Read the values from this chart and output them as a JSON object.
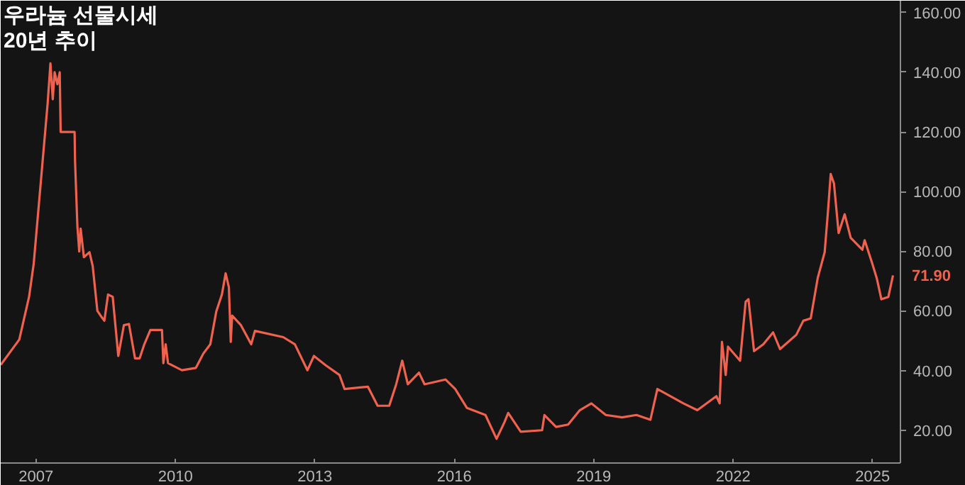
{
  "chart_data": {
    "type": "line",
    "title": "우라늄 선물시세\n20년 추이",
    "x": [
      2006.24,
      2006.64,
      2006.85,
      2006.95,
      2007.1,
      2007.25,
      2007.31,
      2007.36,
      2007.4,
      2007.46,
      2007.51,
      2007.53,
      2007.83,
      2007.84,
      2007.89,
      2007.93,
      2007.96,
      2008.03,
      2008.15,
      2008.22,
      2008.32,
      2008.39,
      2008.47,
      2008.55,
      2008.65,
      2008.77,
      2008.89,
      2009.0,
      2009.13,
      2009.23,
      2009.33,
      2009.46,
      2009.71,
      2009.74,
      2009.79,
      2009.84,
      2010.14,
      2010.44,
      2010.6,
      2010.75,
      2010.88,
      2011.0,
      2011.08,
      2011.15,
      2011.19,
      2011.22,
      2011.41,
      2011.63,
      2011.71,
      2012.32,
      2012.57,
      2012.84,
      2012.98,
      2013.23,
      2013.53,
      2013.64,
      2014.14,
      2014.35,
      2014.6,
      2014.75,
      2014.88,
      2015.0,
      2015.24,
      2015.36,
      2015.81,
      2016.02,
      2016.27,
      2016.67,
      2016.91,
      2017.08,
      2017.16,
      2017.43,
      2017.89,
      2017.94,
      2018.19,
      2018.45,
      2018.7,
      2018.95,
      2019.26,
      2019.61,
      2019.92,
      2020.22,
      2020.37,
      2020.93,
      2021.23,
      2021.64,
      2021.71,
      2021.76,
      2021.84,
      2021.89,
      2022.15,
      2022.27,
      2022.33,
      2022.45,
      2022.65,
      2022.86,
      2023.01,
      2023.36,
      2023.51,
      2023.67,
      2023.82,
      2023.97,
      2024.04,
      2024.1,
      2024.17,
      2024.27,
      2024.4,
      2024.53,
      2024.78,
      2024.83,
      2024.98,
      2025.09,
      2025.19,
      2025.34,
      2025.44
    ],
    "series": [
      {
        "color": "#f0624e",
        "values": [
          41.9,
          50.4,
          64.7,
          75.8,
          102.7,
          129.6,
          143.0,
          131.0,
          140.0,
          136.0,
          140.0,
          120.0,
          120.0,
          110.0,
          88.4,
          79.9,
          87.6,
          78.0,
          79.7,
          75.0,
          60.0,
          58.4,
          56.7,
          65.5,
          64.7,
          44.9,
          55.2,
          55.6,
          44.1,
          44.1,
          48.8,
          53.6,
          53.6,
          42.5,
          48.8,
          42.5,
          40.1,
          40.9,
          45.7,
          48.8,
          59.9,
          65.5,
          72.6,
          67.9,
          49.6,
          58.4,
          55.2,
          48.8,
          53.3,
          51.2,
          48.8,
          40.1,
          44.9,
          41.8,
          38.5,
          33.8,
          34.6,
          28.2,
          28.2,
          35.4,
          43.3,
          35.4,
          39.3,
          35.4,
          37.0,
          33.8,
          27.5,
          25.1,
          17.1,
          22.7,
          25.8,
          19.5,
          20.0,
          25.1,
          21.1,
          21.9,
          26.7,
          29.0,
          25.1,
          24.3,
          25.1,
          23.5,
          33.8,
          29.0,
          26.7,
          31.4,
          29.0,
          49.6,
          38.5,
          48.0,
          43.3,
          63.1,
          63.9,
          46.5,
          48.8,
          52.8,
          47.2,
          52.0,
          56.7,
          57.5,
          71.0,
          79.7,
          93.2,
          105.9,
          102.7,
          86.1,
          92.4,
          84.5,
          80.5,
          83.7,
          76.6,
          71.0,
          63.9,
          64.7,
          71.9
        ]
      }
    ],
    "xlim": [
      2006.24,
      2025.6
    ],
    "ylim": [
      9,
      164
    ],
    "xticks": [
      2007,
      2010,
      2013,
      2016,
      2019,
      2022,
      2025
    ],
    "yticks": [
      {
        "value": 20,
        "label": "20.00"
      },
      {
        "value": 40,
        "label": "40.00"
      },
      {
        "value": 60,
        "label": "60.00"
      },
      {
        "value": 80,
        "label": "80.00"
      },
      {
        "value": 100,
        "label": "100.00"
      },
      {
        "value": 120,
        "label": "120.00"
      },
      {
        "value": 140,
        "label": "140.00"
      },
      {
        "value": 160,
        "label": "160.00"
      }
    ],
    "annotations": [
      "71.90"
    ],
    "grid": false
  }
}
